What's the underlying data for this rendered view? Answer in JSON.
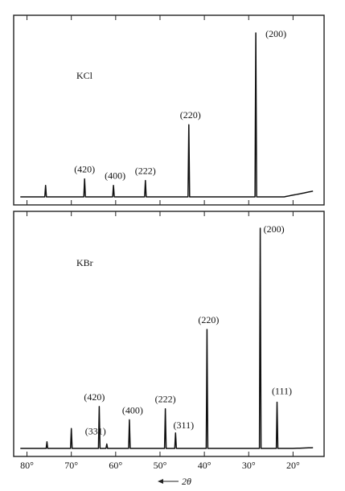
{
  "chart_data": [
    {
      "type": "line",
      "title": "KCl",
      "x_unit": "2θ (degrees)",
      "xlim": [
        83,
        13
      ],
      "peaks": [
        {
          "x": 75.8,
          "label": "",
          "height": 0.07
        },
        {
          "x": 67.0,
          "label": "(420)",
          "height": 0.11
        },
        {
          "x": 60.5,
          "label": "(400)",
          "height": 0.07
        },
        {
          "x": 53.3,
          "label": "(222)",
          "height": 0.1
        },
        {
          "x": 43.5,
          "label": "(220)",
          "height": 0.44
        },
        {
          "x": 28.4,
          "label": "(200)",
          "height": 1.0
        }
      ]
    },
    {
      "type": "line",
      "title": "KBr",
      "x_unit": "2θ (degrees)",
      "xlim": [
        83,
        13
      ],
      "xticks": [
        80,
        70,
        60,
        50,
        40,
        30,
        20
      ],
      "xticklabels": [
        "80°",
        "70°",
        "60°",
        "50°",
        "40°",
        "30°",
        "20°"
      ],
      "xlabel": "2θ",
      "peaks": [
        {
          "x": 75.5,
          "label": "",
          "height": 0.03
        },
        {
          "x": 70.0,
          "label": "",
          "height": 0.09
        },
        {
          "x": 63.7,
          "label": "(420)",
          "height": 0.19
        },
        {
          "x": 62.0,
          "label": "(331)",
          "height": 0.02
        },
        {
          "x": 56.9,
          "label": "(400)",
          "height": 0.13
        },
        {
          "x": 48.8,
          "label": "(222)",
          "height": 0.18
        },
        {
          "x": 46.5,
          "label": "(311)",
          "height": 0.07
        },
        {
          "x": 39.4,
          "label": "(220)",
          "height": 0.54
        },
        {
          "x": 27.4,
          "label": "(200)",
          "height": 1.0
        },
        {
          "x": 23.6,
          "label": "(111)",
          "height": 0.21
        }
      ]
    }
  ]
}
